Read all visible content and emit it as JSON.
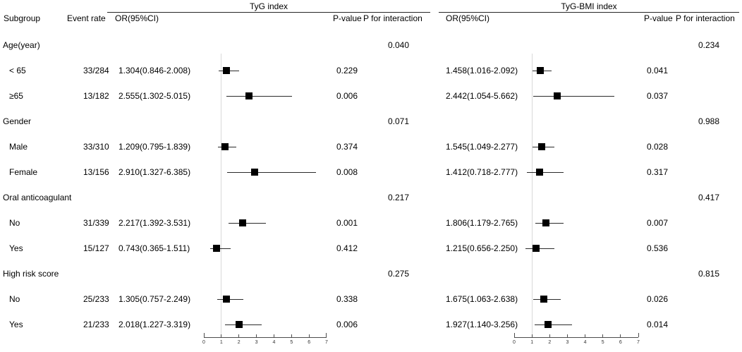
{
  "sections": {
    "left_title": "TyG index",
    "right_title": "TyG-BMI index"
  },
  "header": {
    "subgroup": "Subgroup",
    "event_rate": "Event rate",
    "or_ci": "OR(95%CI)",
    "p_value": "P-value",
    "p_interaction": "P for interaction"
  },
  "colors": {
    "text": "#000000",
    "marker": "#000000",
    "ci_line": "#2b2b2b",
    "ref_line": "#d9d9d9",
    "axis": "#4d4d4d",
    "rule": "#262626"
  },
  "chart_data": {
    "type": "forest",
    "series_names": [
      "TyG index",
      "TyG-BMI index"
    ],
    "axis": {
      "min": 0,
      "max": 7,
      "ticks": [
        "0",
        "1",
        "2",
        "3",
        "4",
        "5",
        "6",
        "7"
      ],
      "ref_line": 1
    },
    "legend_note": "squares = OR point estimate, horizontal lines = 95% CI, gray vertical line = OR of 1",
    "groups": [
      {
        "label": "Age(year)",
        "p_interaction": {
          "tyg": "0.040",
          "tyg_bmi": "0.234"
        },
        "rows": [
          {
            "label": "< 65",
            "event_rate": "33/284",
            "tyg": {
              "text": "1.304(0.846-2.008)",
              "or": 1.304,
              "lo": 0.846,
              "hi": 2.008,
              "p": "0.229"
            },
            "tyg_bmi": {
              "text": "1.458(1.016-2.092)",
              "or": 1.458,
              "lo": 1.016,
              "hi": 2.092,
              "p": "0.041"
            }
          },
          {
            "label": "≥65",
            "event_rate": "13/182",
            "tyg": {
              "text": "2.555(1.302-5.015)",
              "or": 2.555,
              "lo": 1.302,
              "hi": 5.015,
              "p": "0.006"
            },
            "tyg_bmi": {
              "text": "2.442(1.054-5.662)",
              "or": 2.442,
              "lo": 1.054,
              "hi": 5.662,
              "p": "0.037"
            }
          }
        ]
      },
      {
        "label": "Gender",
        "p_interaction": {
          "tyg": "0.071",
          "tyg_bmi": "0.988"
        },
        "rows": [
          {
            "label": "Male",
            "event_rate": "33/310",
            "tyg": {
              "text": "1.209(0.795-1.839)",
              "or": 1.209,
              "lo": 0.795,
              "hi": 1.839,
              "p": "0.374"
            },
            "tyg_bmi": {
              "text": "1.545(1.049-2.277)",
              "or": 1.545,
              "lo": 1.049,
              "hi": 2.277,
              "p": "0.028"
            }
          },
          {
            "label": "Female",
            "event_rate": "13/156",
            "tyg": {
              "text": "2.910(1.327-6.385)",
              "or": 2.91,
              "lo": 1.327,
              "hi": 6.385,
              "p": "0.008"
            },
            "tyg_bmi": {
              "text": "1.412(0.718-2.777)",
              "or": 1.412,
              "lo": 0.718,
              "hi": 2.777,
              "p": "0.317"
            }
          }
        ]
      },
      {
        "label": "Oral anticoagulant",
        "p_interaction": {
          "tyg": "0.217",
          "tyg_bmi": "0.417"
        },
        "rows": [
          {
            "label": "No",
            "event_rate": "31/339",
            "tyg": {
              "text": "2.217(1.392-3.531)",
              "or": 2.217,
              "lo": 1.392,
              "hi": 3.531,
              "p": "0.001"
            },
            "tyg_bmi": {
              "text": "1.806(1.179-2.765)",
              "or": 1.806,
              "lo": 1.179,
              "hi": 2.765,
              "p": "0.007"
            }
          },
          {
            "label": "Yes",
            "event_rate": "15/127",
            "tyg": {
              "text": "0.743(0.365-1.511)",
              "or": 0.743,
              "lo": 0.365,
              "hi": 1.511,
              "p": "0.412"
            },
            "tyg_bmi": {
              "text": "1.215(0.656-2.250)",
              "or": 1.215,
              "lo": 0.656,
              "hi": 2.25,
              "p": "0.536"
            }
          }
        ]
      },
      {
        "label": "High risk score",
        "p_interaction": {
          "tyg": "0.275",
          "tyg_bmi": "0.815"
        },
        "rows": [
          {
            "label": "No",
            "event_rate": "25/233",
            "tyg": {
              "text": "1.305(0.757-2.249)",
              "or": 1.305,
              "lo": 0.757,
              "hi": 2.249,
              "p": "0.338"
            },
            "tyg_bmi": {
              "text": "1.675(1.063-2.638)",
              "or": 1.675,
              "lo": 1.063,
              "hi": 2.638,
              "p": "0.026"
            }
          },
          {
            "label": "Yes",
            "event_rate": "21/233",
            "tyg": {
              "text": "2.018(1.227-3.319)",
              "or": 2.018,
              "lo": 1.227,
              "hi": 3.319,
              "p": "0.006"
            },
            "tyg_bmi": {
              "text": "1.927(1.140-3.256)",
              "or": 1.927,
              "lo": 1.14,
              "hi": 3.256,
              "p": "0.014"
            }
          }
        ]
      }
    ]
  }
}
